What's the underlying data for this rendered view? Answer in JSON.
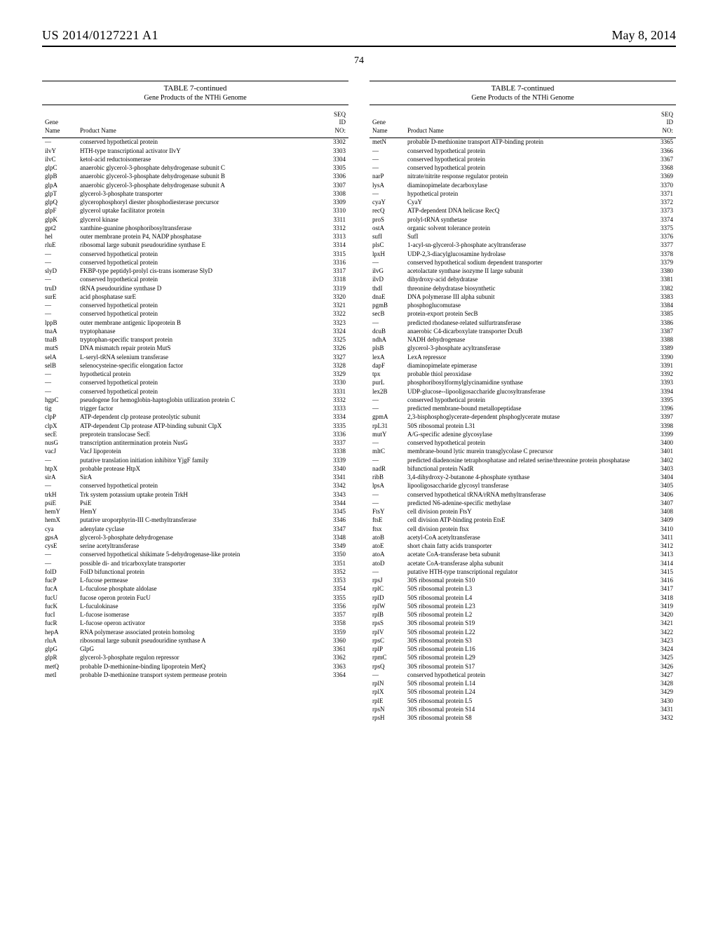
{
  "header": {
    "patent_number": "US 2014/0127221 A1",
    "date": "May 8, 2014",
    "page_number": "74"
  },
  "table": {
    "title": "TABLE 7-continued",
    "subtitle": "Gene Products of the NTHi Genome",
    "columns": {
      "gene": "Gene\nName",
      "product": "Product Name",
      "seq": "SEQ\nID\nNO:"
    }
  },
  "left_rows": [
    {
      "gene": "—",
      "product": "conserved hypothetical protein",
      "seq": "3302"
    },
    {
      "gene": "ilvY",
      "product": "HTH-type transcriptional activator IlvY",
      "seq": "3303"
    },
    {
      "gene": "ilvC",
      "product": "ketol-acid reductoisomerase",
      "seq": "3304"
    },
    {
      "gene": "glpC",
      "product": "anaerobic glycerol-3-phosphate dehydrogenase subunit C",
      "seq": "3305"
    },
    {
      "gene": "glpB",
      "product": "anaerobic glycerol-3-phosphate dehydrogenase subunit B",
      "seq": "3306"
    },
    {
      "gene": "glpA",
      "product": "anaerobic glycerol-3-phosphate dehydrogenase subunit A",
      "seq": "3307"
    },
    {
      "gene": "glpT",
      "product": "glycerol-3-phosphate transporter",
      "seq": "3308"
    },
    {
      "gene": "glpQ",
      "product": "glycerophosphoryl diester phosphodiesterase precursor",
      "seq": "3309"
    },
    {
      "gene": "glpF",
      "product": "glycerol uptake facilitator protein",
      "seq": "3310"
    },
    {
      "gene": "glpK",
      "product": "glycerol kinase",
      "seq": "3311"
    },
    {
      "gene": "gpt2",
      "product": "xanthine-guanine phosphoribosyltransferase",
      "seq": "3312"
    },
    {
      "gene": "hel",
      "product": "outer membrane protein P4, NADP phosphatase",
      "seq": "3313"
    },
    {
      "gene": "rluE",
      "product": "ribosomal large subunit pseudouridine synthase E",
      "seq": "3314"
    },
    {
      "gene": "—",
      "product": "conserved hypothetical protein",
      "seq": "3315"
    },
    {
      "gene": "—",
      "product": "conserved hypothetical protein",
      "seq": "3316"
    },
    {
      "gene": "slyD",
      "product": "FKBP-type peptidyl-prolyl cis-trans isomerase SlyD",
      "seq": "3317"
    },
    {
      "gene": "—",
      "product": "conserved hypothetical protein",
      "seq": "3318"
    },
    {
      "gene": "truD",
      "product": "tRNA pseudouridine synthase D",
      "seq": "3319"
    },
    {
      "gene": "surE",
      "product": "acid phosphatase surE",
      "seq": "3320"
    },
    {
      "gene": "—",
      "product": "conserved hypothetical protein",
      "seq": "3321"
    },
    {
      "gene": "—",
      "product": "conserved hypothetical protein",
      "seq": "3322"
    },
    {
      "gene": "lppB",
      "product": "outer membrane antigenic lipoprotein B",
      "seq": "3323"
    },
    {
      "gene": "tnaA",
      "product": "tryptophanase",
      "seq": "3324"
    },
    {
      "gene": "tnaB",
      "product": "tryptophan-specific transport protein",
      "seq": "3325"
    },
    {
      "gene": "mutS",
      "product": "DNA mismatch repair protein MutS",
      "seq": "3326"
    },
    {
      "gene": "selA",
      "product": "L-seryl-tRNA selenium transferase",
      "seq": "3327"
    },
    {
      "gene": "selB",
      "product": "selenocysteine-specific elongation factor",
      "seq": "3328"
    },
    {
      "gene": "—",
      "product": "hypothetical protein",
      "seq": "3329"
    },
    {
      "gene": "—",
      "product": "conserved hypothetical protein",
      "seq": "3330"
    },
    {
      "gene": "—",
      "product": "conserved hypothetical protein",
      "seq": "3331"
    },
    {
      "gene": "hgpC",
      "product": "pseudogene for hemoglobin-haptoglobin utilization protein C",
      "seq": "3332"
    },
    {
      "gene": "tig",
      "product": "trigger factor",
      "seq": "3333"
    },
    {
      "gene": "clpP",
      "product": "ATP-dependent clp protease proteolytic subunit",
      "seq": "3334"
    },
    {
      "gene": "clpX",
      "product": "ATP-dependent Clp protease ATP-binding subunit ClpX",
      "seq": "3335"
    },
    {
      "gene": "secE",
      "product": "preprotein translocase SecE",
      "seq": "3336"
    },
    {
      "gene": "nusG",
      "product": "transcription antitermination protein NusG",
      "seq": "3337"
    },
    {
      "gene": "vacJ",
      "product": "VacJ lipoprotein",
      "seq": "3338"
    },
    {
      "gene": "—",
      "product": "putative translation initiation inhibitor YjgF family",
      "seq": "3339"
    },
    {
      "gene": "htpX",
      "product": "probable protease HtpX",
      "seq": "3340"
    },
    {
      "gene": "sirA",
      "product": "SirA",
      "seq": "3341"
    },
    {
      "gene": "—",
      "product": "conserved hypothetical protein",
      "seq": "3342"
    },
    {
      "gene": "trkH",
      "product": "Trk system potassium uptake protein TrkH",
      "seq": "3343"
    },
    {
      "gene": "psiE",
      "product": "PsiE",
      "seq": "3344"
    },
    {
      "gene": "hemY",
      "product": "HemY",
      "seq": "3345"
    },
    {
      "gene": "hemX",
      "product": "putative uroporphyrin-III C-methyltransferase",
      "seq": "3346"
    },
    {
      "gene": "cya",
      "product": "adenylate cyclase",
      "seq": "3347"
    },
    {
      "gene": "gpsA",
      "product": "glycerol-3-phosphate dehydrogenase",
      "seq": "3348"
    },
    {
      "gene": "cysE",
      "product": "serine acetyltransferase",
      "seq": "3349"
    },
    {
      "gene": "—",
      "product": "conserved hypothetical shikimate 5-dehydrogenase-like protein",
      "seq": "3350"
    },
    {
      "gene": "—",
      "product": "possible di- and tricarboxylate transporter",
      "seq": "3351"
    },
    {
      "gene": "folD",
      "product": "FolD bifunctional protein",
      "seq": "3352"
    },
    {
      "gene": "fucP",
      "product": "L-fucose permease",
      "seq": "3353"
    },
    {
      "gene": "fucA",
      "product": "L-fuculose phosphate aldolase",
      "seq": "3354"
    },
    {
      "gene": "fucU",
      "product": "fucose operon protein FucU",
      "seq": "3355"
    },
    {
      "gene": "fucK",
      "product": "L-fuculokinase",
      "seq": "3356"
    },
    {
      "gene": "fucI",
      "product": "L-fucose isomerase",
      "seq": "3357"
    },
    {
      "gene": "fucR",
      "product": "L-fucose operon activator",
      "seq": "3358"
    },
    {
      "gene": "hepA",
      "product": "RNA polymerase associated protein homolog",
      "seq": "3359"
    },
    {
      "gene": "rluA",
      "product": "ribosomal large subunit pseudouridine synthase A",
      "seq": "3360"
    },
    {
      "gene": "glpG",
      "product": "GlpG",
      "seq": "3361"
    },
    {
      "gene": "glpR",
      "product": "glycerol-3-phosphate regulon repressor",
      "seq": "3362"
    },
    {
      "gene": "metQ",
      "product": "probable D-methionine-binding lipoprotein MetQ",
      "seq": "3363"
    },
    {
      "gene": "metI",
      "product": "probable D-methionine transport system permease protein",
      "seq": "3364"
    }
  ],
  "right_rows": [
    {
      "gene": "metN",
      "product": "probable D-methionine transport ATP-binding protein",
      "seq": "3365"
    },
    {
      "gene": "—",
      "product": "conserved hypothetical protein",
      "seq": "3366"
    },
    {
      "gene": "—",
      "product": "conserved hypothetical protein",
      "seq": "3367"
    },
    {
      "gene": "—",
      "product": "conserved hypothetical protein",
      "seq": "3368"
    },
    {
      "gene": "narP",
      "product": "nitrate/nitrite response regulator protein",
      "seq": "3369"
    },
    {
      "gene": "lysA",
      "product": "diaminopimelate decarboxylase",
      "seq": "3370"
    },
    {
      "gene": "—",
      "product": "hypothetical protein",
      "seq": "3371"
    },
    {
      "gene": "cyaY",
      "product": "CyaY",
      "seq": "3372"
    },
    {
      "gene": "recQ",
      "product": "ATP-dependent DNA helicase RecQ",
      "seq": "3373"
    },
    {
      "gene": "proS",
      "product": "prolyl-tRNA synthetase",
      "seq": "3374"
    },
    {
      "gene": "ostA",
      "product": "organic solvent tolerance protein",
      "seq": "3375"
    },
    {
      "gene": "sufI",
      "product": "SufI",
      "seq": "3376"
    },
    {
      "gene": "plsC",
      "product": "1-acyl-sn-glycerol-3-phosphate acyltransferase",
      "seq": "3377"
    },
    {
      "gene": "lpxH",
      "product": "UDP-2,3-diacylglucosamine hydrolase",
      "seq": "3378"
    },
    {
      "gene": "—",
      "product": "conserved hypothetical sodium dependent transporter",
      "seq": "3379"
    },
    {
      "gene": "ilvG",
      "product": "acetolactate synthase isozyme II large subunit",
      "seq": "3380"
    },
    {
      "gene": "ilvD",
      "product": "dihydroxy-acid dehydratase",
      "seq": "3381"
    },
    {
      "gene": "thdI",
      "product": "threonine dehydratase biosynthetic",
      "seq": "3382"
    },
    {
      "gene": "dnaE",
      "product": "DNA polymerase III alpha subunit",
      "seq": "3383"
    },
    {
      "gene": "pgmB",
      "product": "phosphoglucomutase",
      "seq": "3384"
    },
    {
      "gene": "secB",
      "product": "protein-export protein SecB",
      "seq": "3385"
    },
    {
      "gene": "—",
      "product": "predicted rhodanese-related sulfurtransferase",
      "seq": "3386"
    },
    {
      "gene": "dcuB",
      "product": "anaerobic C4-dicarboxylate transporter DcuB",
      "seq": "3387"
    },
    {
      "gene": "ndhA",
      "product": "NADH dehydrogenase",
      "seq": "3388"
    },
    {
      "gene": "plsB",
      "product": "glycerol-3-phosphate acyltransferase",
      "seq": "3389"
    },
    {
      "gene": "lexA",
      "product": "LexA repressor",
      "seq": "3390"
    },
    {
      "gene": "dapF",
      "product": "diaminopimelate epimerase",
      "seq": "3391"
    },
    {
      "gene": "tpx",
      "product": "probable thiol peroxidase",
      "seq": "3392"
    },
    {
      "gene": "purL",
      "product": "phosphoribosylformylglycinamidine synthase",
      "seq": "3393"
    },
    {
      "gene": "lex2B",
      "product": "UDP-glucose--lipooligosaccharide glucosyltransferase",
      "seq": "3394"
    },
    {
      "gene": "—",
      "product": "conserved hypothetical protein",
      "seq": "3395"
    },
    {
      "gene": "—",
      "product": "predicted membrane-bound metallopeptidase",
      "seq": "3396"
    },
    {
      "gene": "gpmA",
      "product": "2,3-bisphosphoglycerate-dependent phsphoglycerate mutase",
      "seq": "3397"
    },
    {
      "gene": "rpL31",
      "product": "50S ribosomal protein L31",
      "seq": "3398"
    },
    {
      "gene": "mutY",
      "product": "A/G-specific adenine glycosylase",
      "seq": "3399"
    },
    {
      "gene": "—",
      "product": "conserved hypothetical protein",
      "seq": "3400"
    },
    {
      "gene": "mltC",
      "product": "membrane-bound lytic murein transglycolase C precursor",
      "seq": "3401"
    },
    {
      "gene": "—",
      "product": "predicted diadenosine tetraphosphatase and related serine/threonine protein phosphatase",
      "seq": "3402"
    },
    {
      "gene": "nadR",
      "product": "bifunctional protein NadR",
      "seq": "3403"
    },
    {
      "gene": "ribB",
      "product": "3,4-dihydroxy-2-butanone 4-phosphate synthase",
      "seq": "3404"
    },
    {
      "gene": "lpsA",
      "product": "lipooligosaccharide glycosyl transferase",
      "seq": "3405"
    },
    {
      "gene": "—",
      "product": "conserved hypothetical tRNA/rRNA methyltransferase",
      "seq": "3406"
    },
    {
      "gene": "—",
      "product": "predicted N6-adenine-specific methylase",
      "seq": "3407"
    },
    {
      "gene": "FtsY",
      "product": "cell division protein FtsY",
      "seq": "3408"
    },
    {
      "gene": "ftsE",
      "product": "cell division ATP-binding protein EtsE",
      "seq": "3409"
    },
    {
      "gene": "ftsx",
      "product": "cell division protein ftsx",
      "seq": "3410"
    },
    {
      "gene": "atoB",
      "product": "acetyl-CoA acetyltransferase",
      "seq": "3411"
    },
    {
      "gene": "atoE",
      "product": "short chain fatty acids transporter",
      "seq": "3412"
    },
    {
      "gene": "atoA",
      "product": "acetate CoA-transferase beta subunit",
      "seq": "3413"
    },
    {
      "gene": "atoD",
      "product": "acetate CoA-transferase alpha subunit",
      "seq": "3414"
    },
    {
      "gene": "—",
      "product": "putative HTH-type transcriptional regulator",
      "seq": "3415"
    },
    {
      "gene": "rpsJ",
      "product": "30S ribosomal protein S10",
      "seq": "3416"
    },
    {
      "gene": "rplC",
      "product": "50S ribosomal protein L3",
      "seq": "3417"
    },
    {
      "gene": "rplD",
      "product": "50S ribosomal protein L4",
      "seq": "3418"
    },
    {
      "gene": "rplW",
      "product": "50S ribosomal protein L23",
      "seq": "3419"
    },
    {
      "gene": "rplB",
      "product": "50S ribosomal protein L2",
      "seq": "3420"
    },
    {
      "gene": "rpsS",
      "product": "30S ribosomal protein S19",
      "seq": "3421"
    },
    {
      "gene": "rplV",
      "product": "50S ribosomal protein L22",
      "seq": "3422"
    },
    {
      "gene": "rpsC",
      "product": "30S ribosomal protein S3",
      "seq": "3423"
    },
    {
      "gene": "rplP",
      "product": "50S ribosomal protein L16",
      "seq": "3424"
    },
    {
      "gene": "rpmC",
      "product": "50S ribosomal protein L29",
      "seq": "3425"
    },
    {
      "gene": "rpsQ",
      "product": "30S ribosomal protein S17",
      "seq": "3426"
    },
    {
      "gene": "—",
      "product": "conserved hypothetical protein",
      "seq": "3427"
    },
    {
      "gene": "rplN",
      "product": "50S ribosomal protein L14",
      "seq": "3428"
    },
    {
      "gene": "rplX",
      "product": "50S ribosomal protein L24",
      "seq": "3429"
    },
    {
      "gene": "rplE",
      "product": "50S ribosomal protein L5",
      "seq": "3430"
    },
    {
      "gene": "rpsN",
      "product": "30S ribosomal protein S14",
      "seq": "3431"
    },
    {
      "gene": "rpsH",
      "product": "30S ribosomal protein S8",
      "seq": "3432"
    }
  ]
}
